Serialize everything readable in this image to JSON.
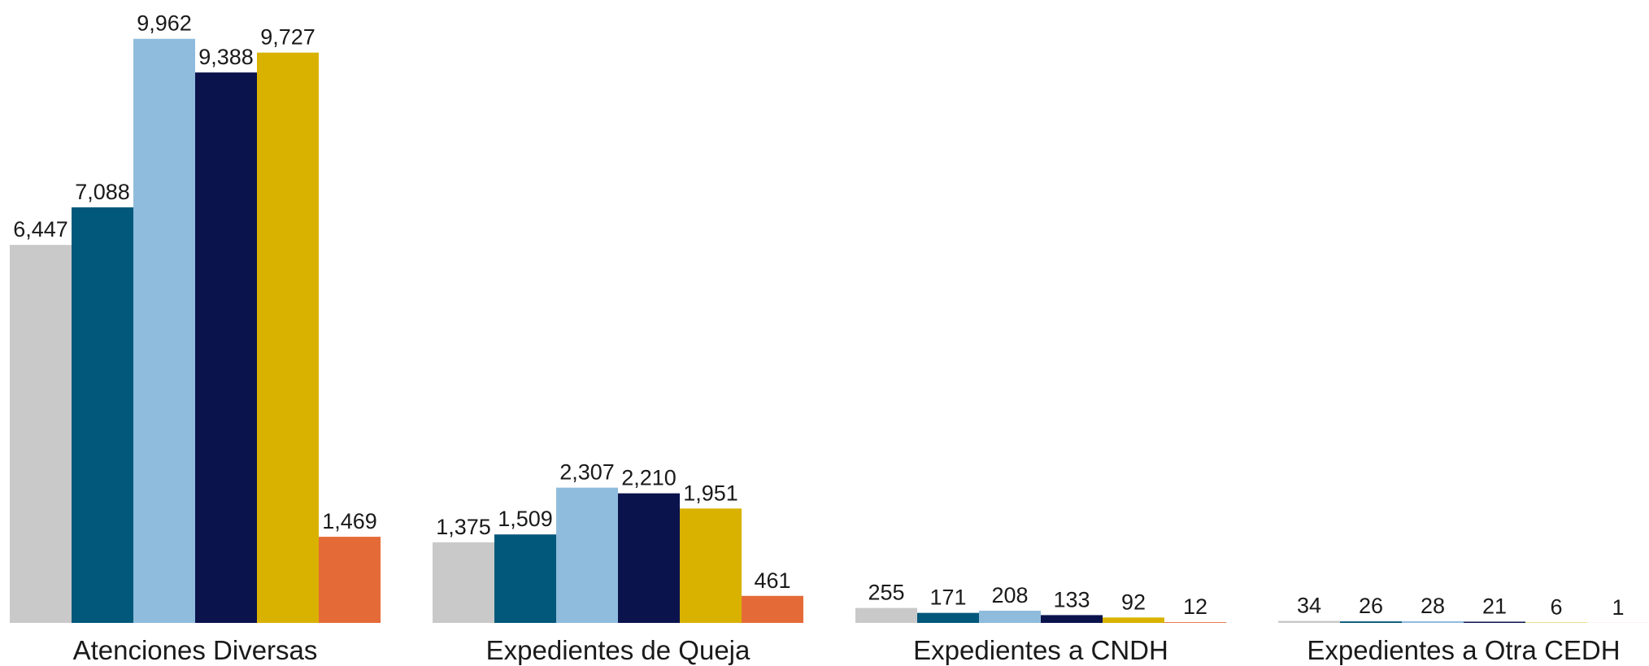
{
  "chart_data": {
    "type": "bar",
    "categories": [
      "Atenciones Diversas",
      "Expedientes de Queja",
      "Expedientes a CNDH",
      "Expedientes a Otra CEDH"
    ],
    "series": [
      {
        "color": "#c9c9c9",
        "values": [
          6447,
          1375,
          255,
          34
        ],
        "value_labels": [
          "6,447",
          "1,375",
          "255",
          "34"
        ]
      },
      {
        "color": "#02587a",
        "values": [
          7088,
          1509,
          171,
          26
        ],
        "value_labels": [
          "7,088",
          "1,509",
          "171",
          "26"
        ]
      },
      {
        "color": "#8fbcdc",
        "values": [
          9962,
          2307,
          208,
          28
        ],
        "value_labels": [
          "9,962",
          "2,307",
          "208",
          "28"
        ]
      },
      {
        "color": "#0b134d",
        "values": [
          9388,
          2210,
          133,
          21
        ],
        "value_labels": [
          "9,388",
          "2,210",
          "133",
          "21"
        ]
      },
      {
        "color": "#d9b200",
        "values": [
          9727,
          1951,
          92,
          6
        ],
        "value_labels": [
          "9,727",
          "1,951",
          "92",
          "6"
        ]
      },
      {
        "color": "#e46b38",
        "values": [
          1469,
          461,
          12,
          1
        ],
        "value_labels": [
          "1,469",
          "461",
          "12",
          "1"
        ]
      }
    ],
    "ylim": [
      0,
      10000
    ]
  }
}
